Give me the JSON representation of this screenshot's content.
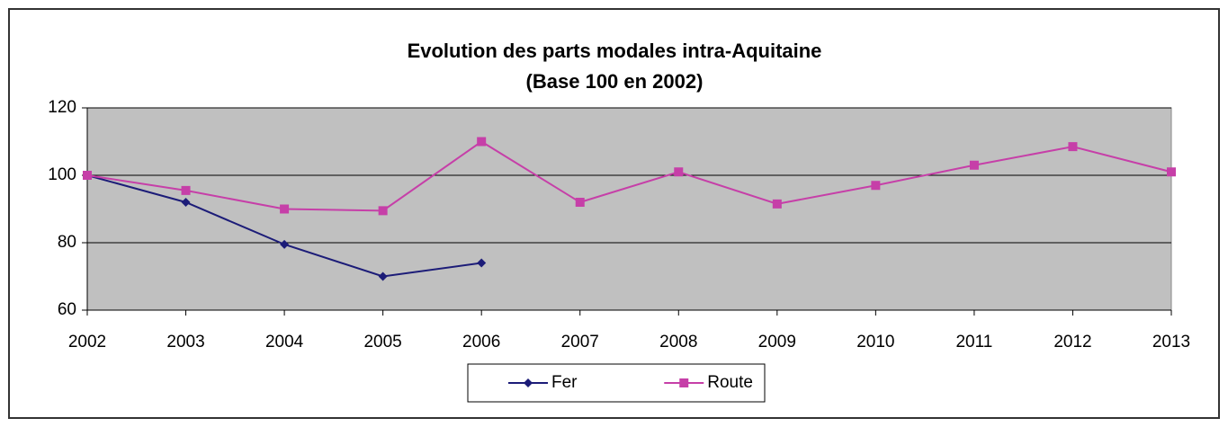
{
  "chart_data": {
    "type": "line",
    "title": "Evolution des parts modales intra-Aquitaine",
    "subtitle": "(Base 100 en 2002)",
    "categories": [
      "2002",
      "2003",
      "2004",
      "2005",
      "2006",
      "2007",
      "2008",
      "2009",
      "2010",
      "2011",
      "2012",
      "2013"
    ],
    "series": [
      {
        "name": "Fer",
        "color": "#1c1c78",
        "marker": "diamond",
        "values": [
          100,
          92,
          79.5,
          70,
          74,
          null,
          null,
          null,
          null,
          null,
          null,
          null
        ]
      },
      {
        "name": "Route",
        "color": "#c63fa8",
        "marker": "square",
        "values": [
          100,
          95.5,
          90,
          89.5,
          110,
          92,
          101,
          91.5,
          97,
          103,
          108.5,
          101
        ]
      }
    ],
    "ylim": [
      60,
      120
    ],
    "yticks": [
      60,
      80,
      100,
      120
    ],
    "grid": true,
    "legend": "bottom"
  }
}
